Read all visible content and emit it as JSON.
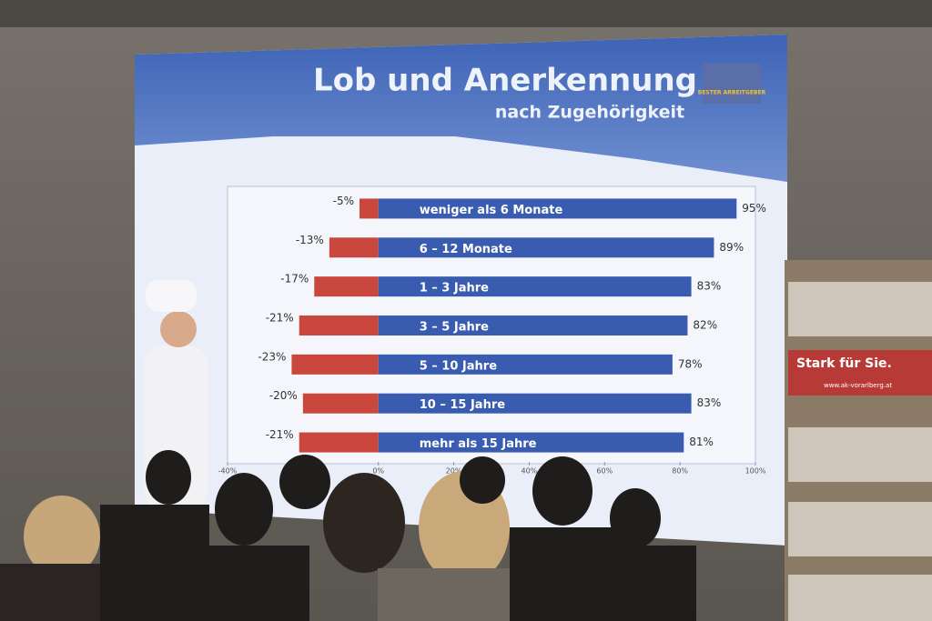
{
  "chart_data": {
    "type": "diverging-bar",
    "title": "Lob und Anerkennung",
    "subtitle": "nach Zugehörigkeit",
    "categories": [
      "weniger als 6 Monate",
      "6 – 12 Monate",
      "1 – 3 Jahre",
      "3 – 5 Jahre",
      "5 – 10 Jahre",
      "10 – 15 Jahre",
      "mehr als 15 Jahre"
    ],
    "series": [
      {
        "color": "#c9473d",
        "values": [
          -5,
          -13,
          -17,
          -21,
          -23,
          -20,
          -21
        ],
        "value_labels": [
          "-5%",
          "-13%",
          "-17%",
          "-21%",
          "-23%",
          "-20%",
          "-21%"
        ]
      },
      {
        "color": "#3a5cb0",
        "values": [
          95,
          89,
          83,
          82,
          78,
          83,
          81
        ],
        "value_labels": [
          "95%",
          "89%",
          "83%",
          "82%",
          "78%",
          "83%",
          "81%"
        ]
      }
    ],
    "xlim": [
      -40,
      100
    ],
    "xticks": [
      {
        "value": -40,
        "label": "-40%"
      },
      {
        "value": 0,
        "label": "0%"
      },
      {
        "value": 20,
        "label": "20%"
      },
      {
        "value": 40,
        "label": "40%"
      },
      {
        "value": 60,
        "label": "60%"
      },
      {
        "value": 80,
        "label": "80%"
      },
      {
        "value": 100,
        "label": "100%"
      }
    ],
    "grid": false
  },
  "scene": {
    "logo": "BESTER ARBEITGEBER",
    "sign": "Stark für Sie.",
    "sign_url": "www.ak-vorarlberg.at"
  }
}
